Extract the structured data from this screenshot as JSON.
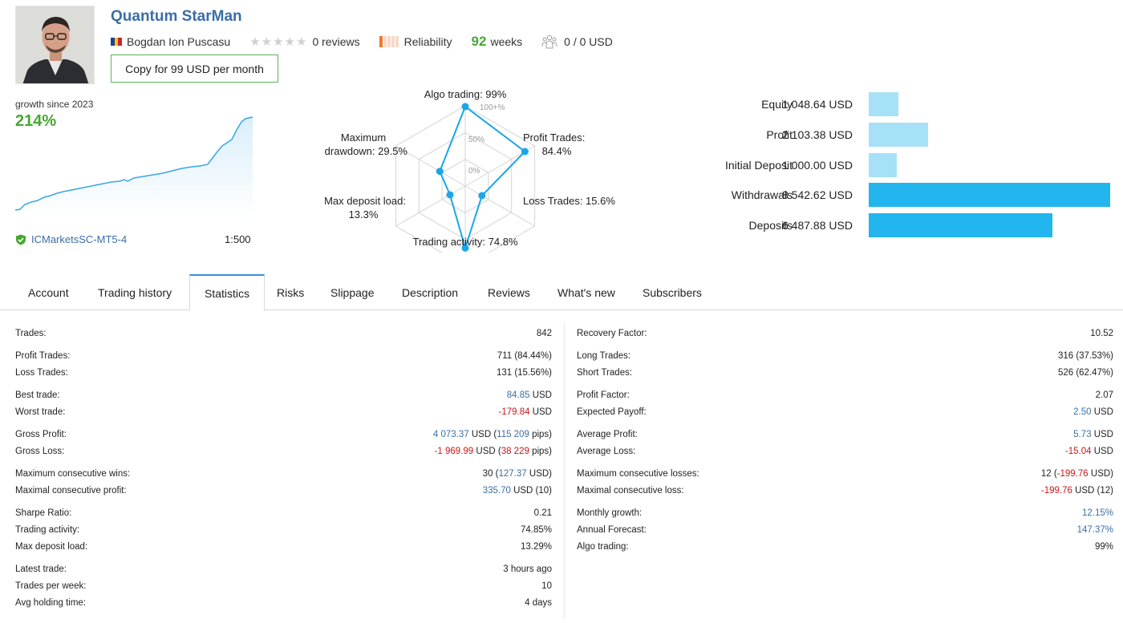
{
  "header": {
    "title": "Quantum StarMan",
    "author": "Bogdan Ion Puscasu",
    "reviews": "0 reviews",
    "reliability_label": "Reliability",
    "weeks_value": "92",
    "weeks_label": "weeks",
    "subscribers": "0 / 0 USD",
    "copy_button": "Copy for 99 USD per month"
  },
  "growth": {
    "label": "growth since 2023",
    "value": "214%",
    "broker": "ICMarketsSC-MT5-4",
    "leverage": "1:500"
  },
  "radar": {
    "labels": {
      "algo": "Algo trading: 99%",
      "profit_1": "Profit Trades:",
      "profit_2": "84.4%",
      "loss": "Loss Trades: 15.6%",
      "activity": "Trading activity: 74.8%",
      "load_1": "Max deposit load:",
      "load_2": "13.3%",
      "dd_1": "Maximum",
      "dd_2": "drawdown: 29.5%"
    },
    "ticks": {
      "t100": "100+%",
      "t50": "50%",
      "t0": "0%"
    },
    "values": [
      99,
      84.4,
      15.6,
      74.8,
      13.3,
      29.5
    ]
  },
  "balance": {
    "rows": [
      {
        "label": "Equity",
        "value": "1 048.64 USD",
        "amount": 1048.64,
        "color": "#a6e1f8"
      },
      {
        "label": "Profit",
        "value": "2 103.38 USD",
        "amount": 2103.38,
        "color": "#a6e1f8"
      },
      {
        "label": "Initial Deposit",
        "value": "1 000.00 USD",
        "amount": 1000.0,
        "color": "#a6e1f8"
      },
      {
        "label": "Withdrawals",
        "value": "8 542.62 USD",
        "amount": 8542.62,
        "color": "#22b5ee"
      },
      {
        "label": "Deposits",
        "value": "6 487.88 USD",
        "amount": 6487.88,
        "color": "#22b5ee"
      }
    ]
  },
  "tabs": [
    "Account",
    "Trading history",
    "Statistics",
    "Risks",
    "Slippage",
    "Description",
    "Reviews",
    "What's new",
    "Subscribers"
  ],
  "stats": {
    "left": [
      {
        "label": "Trades:",
        "v": [
          [
            "842",
            ""
          ]
        ]
      },
      {
        "label": "Profit Trades:",
        "v": [
          [
            "711 (84.44%)",
            ""
          ]
        ]
      },
      {
        "label": "Loss Trades:",
        "v": [
          [
            "131 (15.56%)",
            ""
          ]
        ]
      },
      {
        "label": "Best trade:",
        "v": [
          [
            "84.85",
            "pos"
          ],
          [
            " USD",
            ""
          ]
        ]
      },
      {
        "label": "Worst trade:",
        "v": [
          [
            "-179.84",
            "neg"
          ],
          [
            " USD",
            ""
          ]
        ]
      },
      {
        "label": "Gross Profit:",
        "v": [
          [
            "4 073.37",
            "pos"
          ],
          [
            " USD (",
            ""
          ],
          [
            "115 209",
            "pos"
          ],
          [
            " pips)",
            ""
          ]
        ]
      },
      {
        "label": "Gross Loss:",
        "v": [
          [
            "-1 969.99",
            "neg"
          ],
          [
            " USD (",
            ""
          ],
          [
            "38 229",
            "neg"
          ],
          [
            " pips)",
            ""
          ]
        ]
      },
      {
        "label": "Maximum consecutive wins:",
        "v": [
          [
            "30 (",
            ""
          ],
          [
            "127.37",
            "pos"
          ],
          [
            " USD)",
            ""
          ]
        ]
      },
      {
        "label": "Maximal consecutive profit:",
        "v": [
          [
            "335.70",
            "pos"
          ],
          [
            " USD (10)",
            ""
          ]
        ]
      },
      {
        "label": "Sharpe Ratio:",
        "v": [
          [
            "0.21",
            ""
          ]
        ]
      },
      {
        "label": "Trading activity:",
        "v": [
          [
            "74.85%",
            ""
          ]
        ]
      },
      {
        "label": "Max deposit load:",
        "v": [
          [
            "13.29%",
            ""
          ]
        ]
      },
      {
        "label": "Latest trade:",
        "v": [
          [
            "3 hours ago",
            ""
          ]
        ]
      },
      {
        "label": "Trades per week:",
        "v": [
          [
            "10",
            ""
          ]
        ]
      },
      {
        "label": "Avg holding time:",
        "v": [
          [
            "4 days",
            ""
          ]
        ]
      }
    ],
    "right": [
      {
        "label": "Recovery Factor:",
        "v": [
          [
            "10.52",
            ""
          ]
        ]
      },
      {
        "label": "Long Trades:",
        "v": [
          [
            "316 (37.53%)",
            ""
          ]
        ]
      },
      {
        "label": "Short Trades:",
        "v": [
          [
            "526 (62.47%)",
            ""
          ]
        ]
      },
      {
        "label": "Profit Factor:",
        "v": [
          [
            "2.07",
            ""
          ]
        ]
      },
      {
        "label": "Expected Payoff:",
        "v": [
          [
            "2.50",
            "pos"
          ],
          [
            " USD",
            ""
          ]
        ]
      },
      {
        "label": "Average Profit:",
        "v": [
          [
            "5.73",
            "pos"
          ],
          [
            " USD",
            ""
          ]
        ]
      },
      {
        "label": "Average Loss:",
        "v": [
          [
            "-15.04",
            "neg"
          ],
          [
            " USD",
            ""
          ]
        ]
      },
      {
        "label": "Maximum consecutive losses:",
        "v": [
          [
            "12 (",
            ""
          ],
          [
            "-199.76",
            "neg"
          ],
          [
            " USD)",
            ""
          ]
        ]
      },
      {
        "label": "Maximal consecutive loss:",
        "v": [
          [
            "-199.76",
            "neg"
          ],
          [
            " USD (12)",
            ""
          ]
        ]
      },
      {
        "label": "Monthly growth:",
        "v": [
          [
            "12.15%",
            "pos"
          ]
        ]
      },
      {
        "label": "Annual Forecast:",
        "v": [
          [
            "147.37%",
            "pos"
          ]
        ]
      },
      {
        "label": "Algo trading:",
        "v": [
          [
            "99%",
            ""
          ]
        ]
      }
    ]
  }
}
